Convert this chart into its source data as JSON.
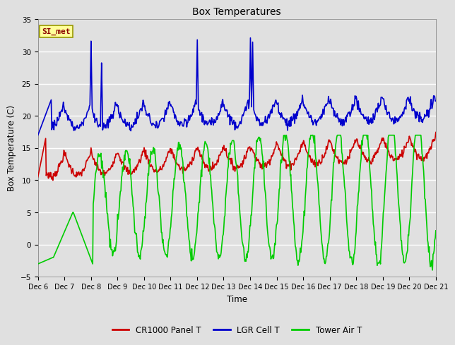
{
  "title": "Box Temperatures",
  "xlabel": "Time",
  "ylabel": "Box Temperature (C)",
  "ylim": [
    -5,
    35
  ],
  "yticks": [
    -5,
    0,
    5,
    10,
    15,
    20,
    25,
    30,
    35
  ],
  "bg_color": "#e0e0e0",
  "plot_bg_color": "#e0e0e0",
  "grid_color": "#ffffff",
  "series": {
    "CR1000 Panel T": {
      "color": "#cc0000",
      "lw": 1.2
    },
    "LGR Cell T": {
      "color": "#0000cc",
      "lw": 1.2
    },
    "Tower Air T": {
      "color": "#00cc00",
      "lw": 1.2
    }
  },
  "annotation": {
    "text": "SI_met",
    "fontsize": 8,
    "color": "#8b0000",
    "bg": "#ffff99",
    "border": "#999900"
  },
  "xtick_labels": [
    "Dec 6",
    "Dec 7",
    "Dec 8",
    "Dec 9",
    "Dec 10",
    "Dec 11",
    "Dec 12",
    "Dec 13",
    "Dec 14",
    "Dec 15",
    "Dec 16",
    "Dec 17",
    "Dec 18",
    "Dec 19",
    "Dec 20",
    "Dec 21"
  ],
  "legend_labels": [
    "CR1000 Panel T",
    "LGR Cell T",
    "Tower Air T"
  ],
  "n_points": 720
}
